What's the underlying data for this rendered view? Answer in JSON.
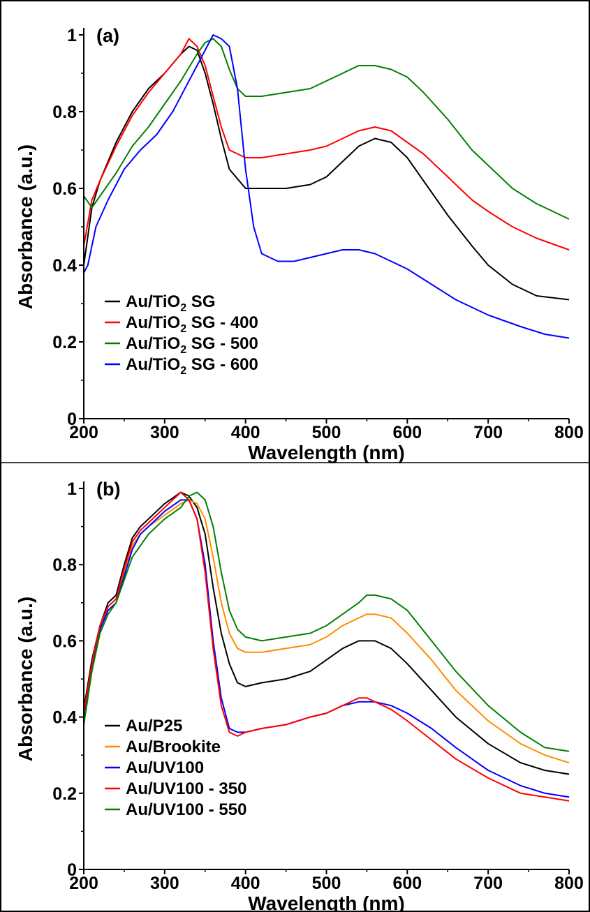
{
  "chart_data": [
    {
      "type": "line",
      "panel_label": "(a)",
      "xlabel": "Wavelength (nm)",
      "ylabel": "Absorbance (a.u.)",
      "xlim": [
        200,
        800
      ],
      "ylim": [
        0,
        1
      ],
      "xticks": [
        200,
        300,
        400,
        500,
        600,
        700,
        800
      ],
      "yticks": [
        0,
        0.2,
        0.4,
        0.6,
        0.8,
        1
      ],
      "ytick_labels": [
        "0",
        "0.2",
        "0.4",
        "0.6",
        "0.8",
        "1"
      ],
      "legend_position": "lower-left",
      "grid": false,
      "series": [
        {
          "name": "Au/TiO2 SG",
          "legend_main": "Au/TiO",
          "legend_sub": "2",
          "legend_rest": " SG",
          "color": "#000000",
          "x": [
            200,
            210,
            220,
            240,
            260,
            280,
            300,
            320,
            330,
            340,
            350,
            360,
            370,
            380,
            400,
            420,
            450,
            480,
            500,
            520,
            540,
            560,
            580,
            600,
            620,
            650,
            680,
            700,
            730,
            760,
            800
          ],
          "y": [
            0.4,
            0.55,
            0.62,
            0.72,
            0.8,
            0.86,
            0.9,
            0.95,
            0.97,
            0.96,
            0.9,
            0.82,
            0.73,
            0.65,
            0.6,
            0.6,
            0.6,
            0.61,
            0.63,
            0.67,
            0.71,
            0.73,
            0.72,
            0.68,
            0.62,
            0.53,
            0.45,
            0.4,
            0.35,
            0.32,
            0.31
          ]
        },
        {
          "name": "Au/TiO2 SG - 400",
          "legend_main": "Au/TiO",
          "legend_sub": "2",
          "legend_rest": " SG - 400",
          "color": "#ff0000",
          "x": [
            200,
            210,
            220,
            240,
            260,
            280,
            300,
            320,
            330,
            340,
            350,
            360,
            370,
            380,
            400,
            420,
            450,
            480,
            500,
            520,
            540,
            560,
            580,
            600,
            620,
            650,
            680,
            700,
            730,
            760,
            800
          ],
          "y": [
            0.45,
            0.57,
            0.62,
            0.71,
            0.79,
            0.85,
            0.9,
            0.95,
            0.99,
            0.97,
            0.92,
            0.84,
            0.76,
            0.7,
            0.68,
            0.68,
            0.69,
            0.7,
            0.71,
            0.73,
            0.75,
            0.76,
            0.75,
            0.72,
            0.69,
            0.63,
            0.57,
            0.54,
            0.5,
            0.47,
            0.44
          ]
        },
        {
          "name": "Au/TiO2 SG - 500",
          "legend_main": "Au/TiO",
          "legend_sub": "2",
          "legend_rest": " SG - 500",
          "color": "#008000",
          "x": [
            200,
            210,
            220,
            240,
            260,
            280,
            300,
            320,
            340,
            350,
            360,
            370,
            380,
            390,
            400,
            420,
            450,
            480,
            500,
            520,
            540,
            560,
            580,
            600,
            620,
            650,
            680,
            700,
            730,
            760,
            800
          ],
          "y": [
            0.58,
            0.55,
            0.58,
            0.64,
            0.71,
            0.76,
            0.82,
            0.88,
            0.95,
            0.98,
            0.99,
            0.97,
            0.91,
            0.86,
            0.84,
            0.84,
            0.85,
            0.86,
            0.88,
            0.9,
            0.92,
            0.92,
            0.91,
            0.89,
            0.85,
            0.78,
            0.7,
            0.66,
            0.6,
            0.56,
            0.52
          ]
        },
        {
          "name": "Au/TiO2 SG - 600",
          "legend_main": "Au/TiO",
          "legend_sub": "2",
          "legend_rest": " SG - 600",
          "color": "#0000ff",
          "x": [
            200,
            205,
            215,
            230,
            250,
            270,
            290,
            310,
            330,
            345,
            355,
            360,
            370,
            380,
            390,
            400,
            410,
            420,
            440,
            460,
            480,
            500,
            520,
            540,
            560,
            580,
            600,
            630,
            660,
            700,
            740,
            770,
            800
          ],
          "y": [
            0.38,
            0.4,
            0.5,
            0.57,
            0.65,
            0.7,
            0.74,
            0.8,
            0.88,
            0.94,
            0.98,
            1.0,
            0.99,
            0.97,
            0.86,
            0.65,
            0.5,
            0.43,
            0.41,
            0.41,
            0.42,
            0.43,
            0.44,
            0.44,
            0.43,
            0.41,
            0.39,
            0.35,
            0.31,
            0.27,
            0.24,
            0.22,
            0.21
          ]
        }
      ]
    },
    {
      "type": "line",
      "panel_label": "(b)",
      "xlabel": "Wavelength (nm)",
      "ylabel": "Absorbance (a.u.)",
      "xlim": [
        200,
        800
      ],
      "ylim": [
        0,
        1
      ],
      "xticks": [
        200,
        300,
        400,
        500,
        600,
        700,
        800
      ],
      "yticks": [
        0,
        0.2,
        0.4,
        0.6,
        0.8,
        1
      ],
      "ytick_labels": [
        "0",
        "0.2",
        "0.4",
        "0.6",
        "0.8",
        "1"
      ],
      "legend_position": "lower-left",
      "grid": false,
      "series": [
        {
          "name": "Au/P25",
          "legend_main": "Au/P25",
          "legend_sub": "",
          "legend_rest": "",
          "color": "#000000",
          "x": [
            200,
            210,
            220,
            230,
            240,
            250,
            260,
            270,
            280,
            300,
            320,
            330,
            340,
            350,
            360,
            370,
            380,
            390,
            400,
            420,
            450,
            480,
            500,
            520,
            540,
            550,
            560,
            580,
            600,
            630,
            660,
            700,
            740,
            770,
            800
          ],
          "y": [
            0.42,
            0.55,
            0.64,
            0.7,
            0.72,
            0.8,
            0.87,
            0.9,
            0.92,
            0.96,
            0.99,
            0.98,
            0.95,
            0.88,
            0.74,
            0.62,
            0.54,
            0.49,
            0.48,
            0.49,
            0.5,
            0.52,
            0.55,
            0.58,
            0.6,
            0.6,
            0.6,
            0.58,
            0.54,
            0.47,
            0.4,
            0.33,
            0.28,
            0.26,
            0.25
          ]
        },
        {
          "name": "Au/Brookite",
          "legend_main": "Au/Brookite",
          "legend_sub": "",
          "legend_rest": "",
          "color": "#ff8c00",
          "x": [
            200,
            210,
            220,
            230,
            240,
            250,
            260,
            270,
            280,
            300,
            320,
            330,
            340,
            350,
            360,
            370,
            380,
            390,
            400,
            420,
            450,
            480,
            500,
            520,
            540,
            550,
            560,
            580,
            600,
            630,
            660,
            700,
            740,
            770,
            800
          ],
          "y": [
            0.4,
            0.54,
            0.64,
            0.69,
            0.71,
            0.78,
            0.85,
            0.88,
            0.9,
            0.93,
            0.96,
            0.97,
            0.96,
            0.92,
            0.82,
            0.7,
            0.62,
            0.58,
            0.57,
            0.57,
            0.58,
            0.59,
            0.61,
            0.64,
            0.66,
            0.67,
            0.67,
            0.66,
            0.62,
            0.55,
            0.47,
            0.39,
            0.33,
            0.3,
            0.28
          ]
        },
        {
          "name": "Au/UV100",
          "legend_main": "Au/UV100",
          "legend_sub": "",
          "legend_rest": "",
          "color": "#0000ff",
          "x": [
            200,
            210,
            220,
            230,
            240,
            250,
            260,
            270,
            280,
            300,
            320,
            330,
            340,
            350,
            360,
            370,
            380,
            390,
            400,
            420,
            450,
            480,
            500,
            520,
            540,
            550,
            560,
            580,
            600,
            630,
            660,
            700,
            740,
            770,
            800
          ],
          "y": [
            0.4,
            0.53,
            0.63,
            0.68,
            0.7,
            0.77,
            0.84,
            0.88,
            0.9,
            0.94,
            0.97,
            0.97,
            0.92,
            0.8,
            0.6,
            0.45,
            0.37,
            0.36,
            0.36,
            0.37,
            0.38,
            0.4,
            0.41,
            0.43,
            0.44,
            0.44,
            0.44,
            0.43,
            0.41,
            0.37,
            0.32,
            0.26,
            0.22,
            0.2,
            0.19
          ]
        },
        {
          "name": "Au/UV100 - 350",
          "legend_main": "Au/UV100 - 350",
          "legend_sub": "",
          "legend_rest": "",
          "color": "#ff0000",
          "x": [
            200,
            210,
            220,
            230,
            240,
            250,
            260,
            270,
            280,
            300,
            320,
            330,
            340,
            350,
            360,
            370,
            380,
            390,
            400,
            420,
            450,
            480,
            500,
            520,
            540,
            550,
            560,
            580,
            600,
            630,
            660,
            700,
            740,
            770,
            800
          ],
          "y": [
            0.41,
            0.54,
            0.64,
            0.69,
            0.71,
            0.79,
            0.86,
            0.89,
            0.91,
            0.95,
            0.99,
            0.97,
            0.92,
            0.78,
            0.58,
            0.43,
            0.36,
            0.35,
            0.36,
            0.37,
            0.38,
            0.4,
            0.41,
            0.43,
            0.45,
            0.45,
            0.44,
            0.42,
            0.39,
            0.34,
            0.29,
            0.24,
            0.2,
            0.19,
            0.18
          ]
        },
        {
          "name": "Au/UV100 - 550",
          "legend_main": "Au/UV100 - 550",
          "legend_sub": "",
          "legend_rest": "",
          "color": "#008000",
          "x": [
            200,
            210,
            220,
            230,
            240,
            250,
            260,
            270,
            280,
            300,
            320,
            330,
            340,
            350,
            360,
            370,
            380,
            390,
            400,
            420,
            450,
            480,
            500,
            520,
            540,
            550,
            560,
            580,
            600,
            630,
            660,
            700,
            740,
            770,
            800
          ],
          "y": [
            0.38,
            0.52,
            0.62,
            0.67,
            0.7,
            0.76,
            0.82,
            0.85,
            0.88,
            0.92,
            0.95,
            0.98,
            0.99,
            0.97,
            0.9,
            0.78,
            0.68,
            0.63,
            0.61,
            0.6,
            0.61,
            0.62,
            0.64,
            0.67,
            0.7,
            0.72,
            0.72,
            0.71,
            0.68,
            0.6,
            0.52,
            0.43,
            0.36,
            0.32,
            0.31
          ]
        }
      ]
    }
  ]
}
